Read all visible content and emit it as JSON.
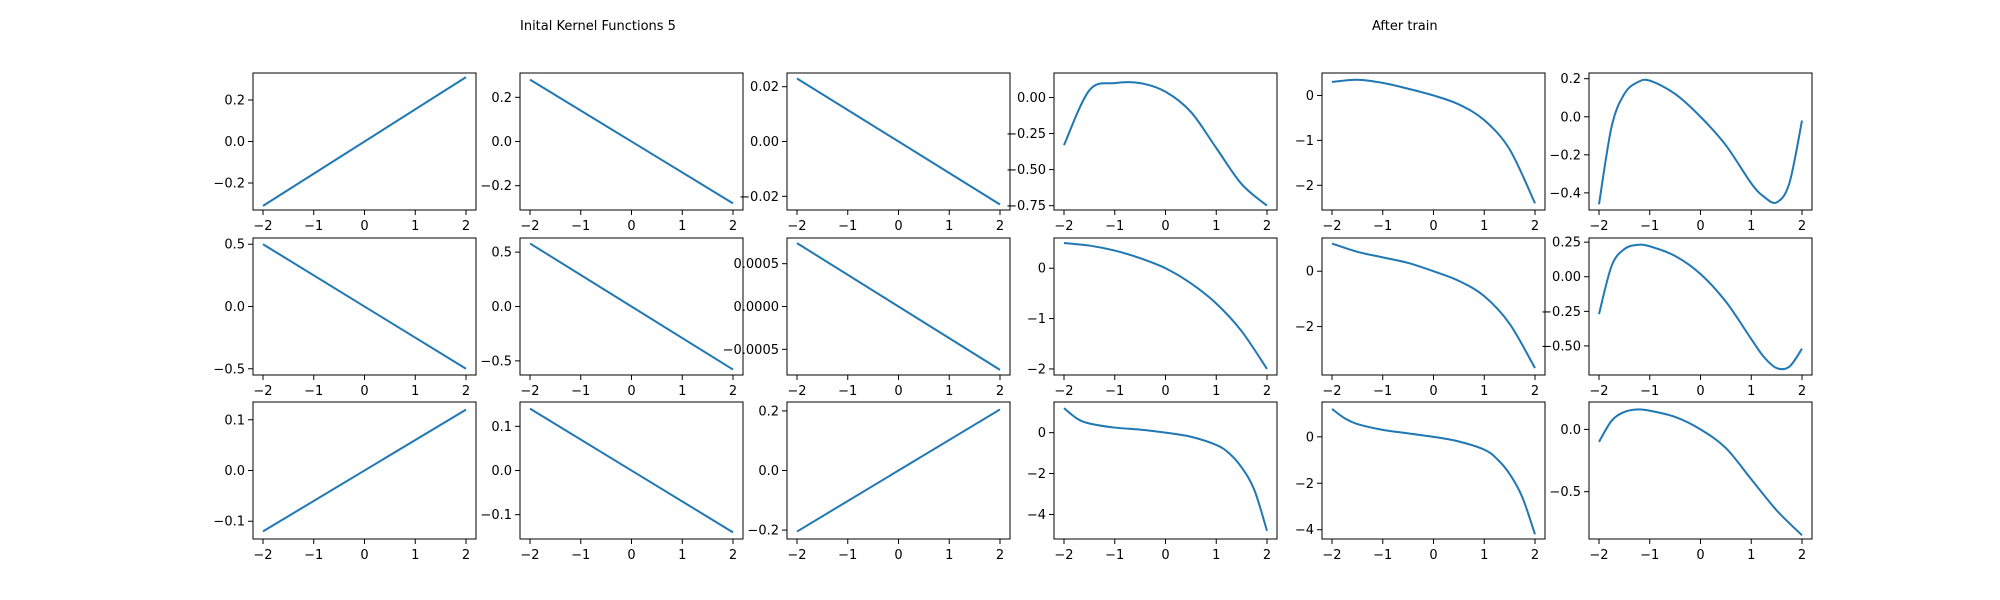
{
  "figure": {
    "titles": [
      "Inital Kernel Functions 5",
      "After train"
    ]
  },
  "colors": {
    "line": "#1f77b4",
    "axes": "#000000",
    "background": "#ffffff"
  },
  "chart_data": [
    {
      "type": "line",
      "panel": "r1c1",
      "xlim": [
        -2,
        2
      ],
      "ylim": [
        -0.33,
        0.33
      ],
      "xticks": [
        -2,
        -1,
        0,
        1,
        2
      ],
      "yticks": [
        -0.2,
        0.0,
        0.2
      ],
      "ytick_labels": [
        "−0.2",
        "0.0",
        "0.2"
      ],
      "series": [
        {
          "x": [
            -2,
            2
          ],
          "y": [
            -0.31,
            0.31
          ]
        }
      ]
    },
    {
      "type": "line",
      "panel": "r1c2",
      "xlim": [
        -2,
        2
      ],
      "ylim": [
        -0.31,
        0.31
      ],
      "xticks": [
        -2,
        -1,
        0,
        1,
        2
      ],
      "yticks": [
        -0.2,
        0.0,
        0.2
      ],
      "ytick_labels": [
        "−0.2",
        "0.0",
        "0.2"
      ],
      "series": [
        {
          "x": [
            -2,
            2
          ],
          "y": [
            0.28,
            -0.28
          ]
        }
      ]
    },
    {
      "type": "line",
      "panel": "r1c3",
      "xlim": [
        -2,
        2
      ],
      "ylim": [
        -0.025,
        0.025
      ],
      "xticks": [
        -2,
        -1,
        0,
        1,
        2
      ],
      "yticks": [
        -0.02,
        0.0,
        0.02
      ],
      "ytick_labels": [
        "−0.02",
        "0.00",
        "0.02"
      ],
      "series": [
        {
          "x": [
            -2,
            2
          ],
          "y": [
            0.023,
            -0.023
          ]
        }
      ]
    },
    {
      "type": "line",
      "panel": "r1c4",
      "xlim": [
        -2,
        2
      ],
      "ylim": [
        -0.78,
        0.17
      ],
      "xticks": [
        -2,
        -1,
        0,
        1,
        2
      ],
      "yticks": [
        -0.75,
        -0.5,
        -0.25,
        0.0
      ],
      "ytick_labels": [
        "−0.75",
        "−0.50",
        "−0.25",
        "0.00"
      ],
      "series": [
        {
          "x": [
            -2,
            -1.5,
            -1,
            -0.5,
            0,
            0.5,
            1,
            1.5,
            2
          ],
          "y": [
            -0.33,
            0.05,
            0.1,
            0.1,
            0.04,
            -0.1,
            -0.35,
            -0.6,
            -0.75
          ]
        }
      ]
    },
    {
      "type": "line",
      "panel": "r1c5",
      "xlim": [
        -2,
        2
      ],
      "ylim": [
        -2.55,
        0.5
      ],
      "xticks": [
        -2,
        -1,
        0,
        1,
        2
      ],
      "yticks": [
        -2,
        -1,
        0
      ],
      "ytick_labels": [
        "−2",
        "−1",
        "0"
      ],
      "series": [
        {
          "x": [
            -2,
            -1.5,
            -1,
            -0.5,
            0,
            0.5,
            1,
            1.5,
            2
          ],
          "y": [
            0.3,
            0.35,
            0.28,
            0.15,
            0,
            -0.2,
            -0.55,
            -1.2,
            -2.4
          ]
        }
      ]
    },
    {
      "type": "line",
      "panel": "r1c6",
      "xlim": [
        -2,
        2
      ],
      "ylim": [
        -0.49,
        0.23
      ],
      "xticks": [
        -2,
        -1,
        0,
        1,
        2
      ],
      "yticks": [
        -0.4,
        -0.2,
        0.0,
        0.2
      ],
      "ytick_labels": [
        "−0.4",
        "−0.2",
        "0.0",
        "0.2"
      ],
      "series": [
        {
          "x": [
            -2,
            -1.75,
            -1.5,
            -1.25,
            -1,
            -0.5,
            0,
            0.5,
            1,
            1.25,
            1.5,
            1.75,
            2
          ],
          "y": [
            -0.46,
            -0.05,
            0.12,
            0.18,
            0.19,
            0.12,
            0.0,
            -0.15,
            -0.35,
            -0.42,
            -0.45,
            -0.35,
            -0.02
          ]
        }
      ]
    },
    {
      "type": "line",
      "panel": "r2c1",
      "xlim": [
        -2,
        2
      ],
      "ylim": [
        -0.55,
        0.55
      ],
      "xticks": [
        -2,
        -1,
        0,
        1,
        2
      ],
      "yticks": [
        -0.5,
        0.0,
        0.5
      ],
      "ytick_labels": [
        "−0.5",
        "0.0",
        "0.5"
      ],
      "series": [
        {
          "x": [
            -2,
            2
          ],
          "y": [
            0.5,
            -0.5
          ]
        }
      ]
    },
    {
      "type": "line",
      "panel": "r2c2",
      "xlim": [
        -2,
        2
      ],
      "ylim": [
        -0.63,
        0.63
      ],
      "xticks": [
        -2,
        -1,
        0,
        1,
        2
      ],
      "yticks": [
        -0.5,
        0.0,
        0.5
      ],
      "ytick_labels": [
        "−0.5",
        "0.0",
        "0.5"
      ],
      "series": [
        {
          "x": [
            -2,
            2
          ],
          "y": [
            0.58,
            -0.58
          ]
        }
      ]
    },
    {
      "type": "line",
      "panel": "r2c3",
      "xlim": [
        -2,
        2
      ],
      "ylim": [
        -0.0008,
        0.0008
      ],
      "xticks": [
        -2,
        -1,
        0,
        1,
        2
      ],
      "yticks": [
        -0.0005,
        0.0,
        0.0005
      ],
      "ytick_labels": [
        "−0.0005",
        "0.0000",
        "0.0005"
      ],
      "series": [
        {
          "x": [
            -2,
            2
          ],
          "y": [
            0.00074,
            -0.00074
          ]
        }
      ]
    },
    {
      "type": "line",
      "panel": "r2c4",
      "xlim": [
        -2,
        2
      ],
      "ylim": [
        -2.12,
        0.6
      ],
      "xticks": [
        -2,
        -1,
        0,
        1,
        2
      ],
      "yticks": [
        -2,
        -1,
        0
      ],
      "ytick_labels": [
        "−2",
        "−1",
        "0"
      ],
      "series": [
        {
          "x": [
            -2,
            -1.5,
            -1,
            -0.5,
            0,
            0.5,
            1,
            1.5,
            2
          ],
          "y": [
            0.5,
            0.45,
            0.35,
            0.2,
            0,
            -0.3,
            -0.7,
            -1.25,
            -2.0
          ]
        }
      ]
    },
    {
      "type": "line",
      "panel": "r2c5",
      "xlim": [
        -2,
        2
      ],
      "ylim": [
        -3.75,
        1.2
      ],
      "xticks": [
        -2,
        -1,
        0,
        1,
        2
      ],
      "yticks": [
        -2,
        0
      ],
      "ytick_labels": [
        "−2",
        "0"
      ],
      "series": [
        {
          "x": [
            -2,
            -1.5,
            -1,
            -0.5,
            0,
            0.5,
            1,
            1.5,
            2
          ],
          "y": [
            1.0,
            0.7,
            0.5,
            0.3,
            0,
            -0.35,
            -0.9,
            -1.9,
            -3.5
          ]
        }
      ]
    },
    {
      "type": "line",
      "panel": "r2c6",
      "xlim": [
        -2,
        2
      ],
      "ylim": [
        -0.71,
        0.28
      ],
      "xticks": [
        -2,
        -1,
        0,
        1,
        2
      ],
      "yticks": [
        -0.5,
        -0.25,
        0.0,
        0.25
      ],
      "ytick_labels": [
        "−0.50",
        "−0.25",
        "0.00",
        "0.25"
      ],
      "series": [
        {
          "x": [
            -2,
            -1.75,
            -1.5,
            -1.25,
            -1,
            -0.5,
            0,
            0.5,
            1,
            1.25,
            1.5,
            1.75,
            2
          ],
          "y": [
            -0.27,
            0.08,
            0.2,
            0.23,
            0.22,
            0.15,
            0.02,
            -0.18,
            -0.45,
            -0.58,
            -0.66,
            -0.65,
            -0.52
          ]
        }
      ]
    },
    {
      "type": "line",
      "panel": "r3c1",
      "xlim": [
        -2,
        2
      ],
      "ylim": [
        -0.135,
        0.135
      ],
      "xticks": [
        -2,
        -1,
        0,
        1,
        2
      ],
      "yticks": [
        -0.1,
        0.0,
        0.1
      ],
      "ytick_labels": [
        "−0.1",
        "0.0",
        "0.1"
      ],
      "series": [
        {
          "x": [
            -2,
            2
          ],
          "y": [
            -0.12,
            0.12
          ]
        }
      ]
    },
    {
      "type": "line",
      "panel": "r3c2",
      "xlim": [
        -2,
        2
      ],
      "ylim": [
        -0.155,
        0.155
      ],
      "xticks": [
        -2,
        -1,
        0,
        1,
        2
      ],
      "yticks": [
        -0.1,
        0.0,
        0.1
      ],
      "ytick_labels": [
        "−0.1",
        "0.0",
        "0.1"
      ],
      "series": [
        {
          "x": [
            -2,
            2
          ],
          "y": [
            0.14,
            -0.14
          ]
        }
      ]
    },
    {
      "type": "line",
      "panel": "r3c3",
      "xlim": [
        -2,
        2
      ],
      "ylim": [
        -0.23,
        0.23
      ],
      "xticks": [
        -2,
        -1,
        0,
        1,
        2
      ],
      "yticks": [
        -0.2,
        0.0,
        0.2
      ],
      "ytick_labels": [
        "−0.2",
        "0.0",
        "0.2"
      ],
      "series": [
        {
          "x": [
            -2,
            2
          ],
          "y": [
            -0.205,
            0.205
          ]
        }
      ]
    },
    {
      "type": "line",
      "panel": "r3c4",
      "xlim": [
        -2,
        2
      ],
      "ylim": [
        -5.2,
        1.5
      ],
      "xticks": [
        -2,
        -1,
        0,
        1,
        2
      ],
      "yticks": [
        -4,
        -2,
        0
      ],
      "ytick_labels": [
        "−4",
        "−2",
        "0"
      ],
      "series": [
        {
          "x": [
            -2,
            -1.75,
            -1.5,
            -1,
            -0.5,
            0,
            0.5,
            1,
            1.25,
            1.5,
            1.75,
            2
          ],
          "y": [
            1.2,
            0.7,
            0.45,
            0.25,
            0.15,
            0.0,
            -0.2,
            -0.6,
            -1.0,
            -1.7,
            -2.8,
            -4.8
          ]
        }
      ]
    },
    {
      "type": "line",
      "panel": "r3c5",
      "xlim": [
        -2,
        2
      ],
      "ylim": [
        -4.4,
        1.5
      ],
      "xticks": [
        -2,
        -1,
        0,
        1,
        2
      ],
      "yticks": [
        -4,
        -2,
        0
      ],
      "ytick_labels": [
        "−4",
        "−2",
        "0"
      ],
      "series": [
        {
          "x": [
            -2,
            -1.75,
            -1.5,
            -1,
            -0.5,
            0,
            0.5,
            1,
            1.25,
            1.5,
            1.75,
            2
          ],
          "y": [
            1.2,
            0.8,
            0.55,
            0.3,
            0.15,
            0.0,
            -0.2,
            -0.55,
            -0.95,
            -1.6,
            -2.6,
            -4.2
          ]
        }
      ]
    },
    {
      "type": "line",
      "panel": "r3c6",
      "xlim": [
        -2,
        2
      ],
      "ylim": [
        -0.88,
        0.22
      ],
      "xticks": [
        -2,
        -1,
        0,
        1,
        2
      ],
      "yticks": [
        -0.5,
        0.0
      ],
      "ytick_labels": [
        "−0.5",
        "0.0"
      ],
      "series": [
        {
          "x": [
            -2,
            -1.75,
            -1.5,
            -1.25,
            -1,
            -0.5,
            0,
            0.5,
            1,
            1.5,
            2
          ],
          "y": [
            -0.1,
            0.07,
            0.14,
            0.16,
            0.15,
            0.1,
            0.0,
            -0.15,
            -0.4,
            -0.65,
            -0.85
          ]
        }
      ]
    }
  ]
}
